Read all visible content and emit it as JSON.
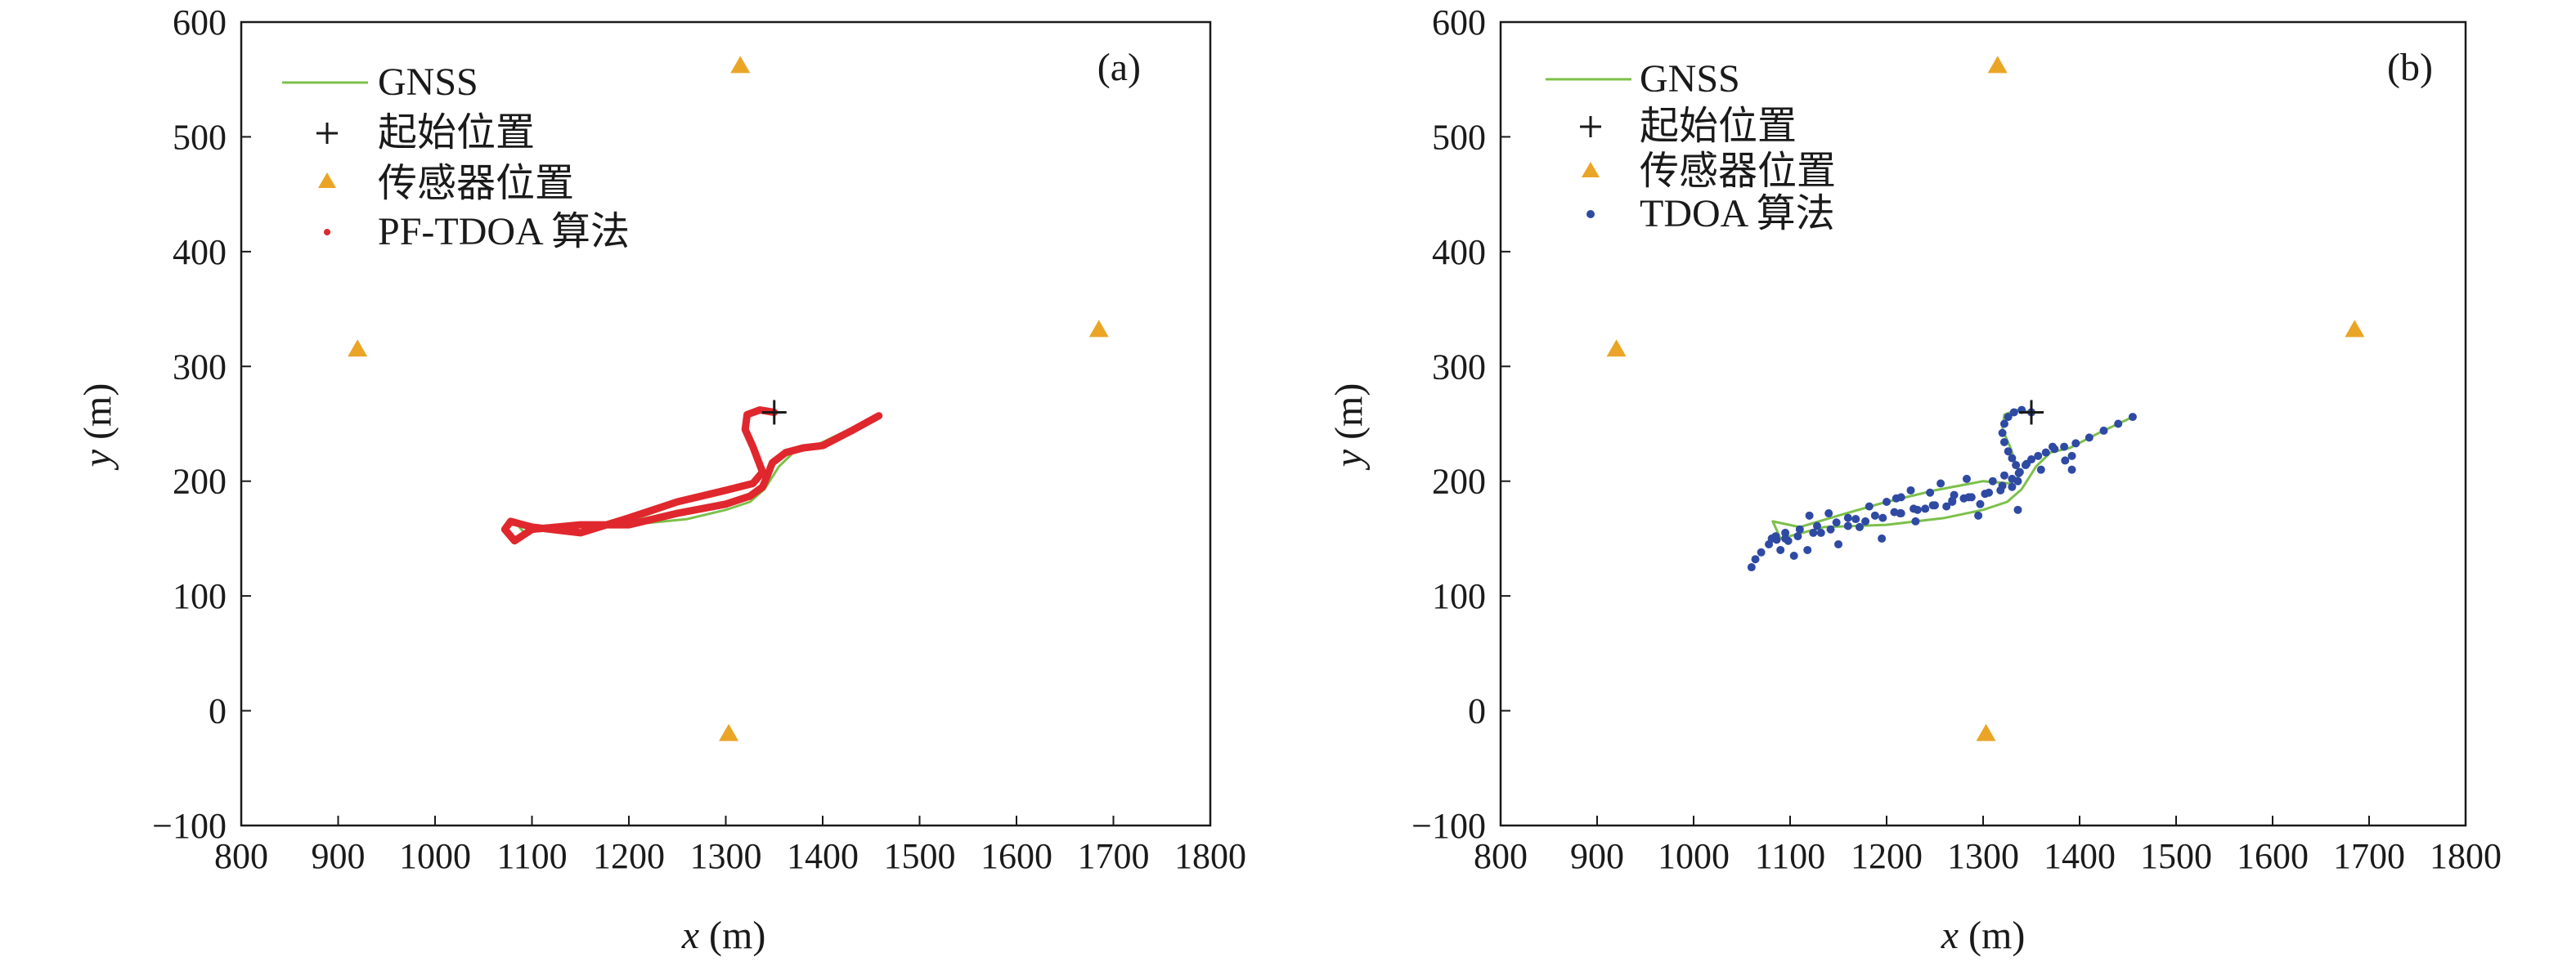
{
  "chart_data": [
    {
      "type": "line",
      "panel_label": "(a)",
      "xlabel_var": "x",
      "xlabel_unit": "(m)",
      "ylabel_var": "y",
      "ylabel_unit": "(m)",
      "xlim": [
        800,
        1800
      ],
      "ylim": [
        -100,
        600
      ],
      "x_ticks": [
        "800",
        "900",
        "1000",
        "1100",
        "1200",
        "1300",
        "1400",
        "1500",
        "1600",
        "1700",
        "1800"
      ],
      "y_ticks": [
        "600",
        "500",
        "400",
        "300",
        "200",
        "100",
        "0",
        "−100"
      ],
      "grid": false,
      "legend_position": "top-left",
      "legend": [
        "GNSS",
        "起始位置",
        "传感器位置",
        "PF-TDOA 算法"
      ],
      "colors": {
        "gnss": "#7cc04a",
        "start": "#1a1a1a",
        "sensor": "#eaa526",
        "estimate": "#e0272d"
      },
      "start_point": [
        1350,
        260
      ],
      "sensors": [
        [
          920,
          315
        ],
        [
          1315,
          562
        ],
        [
          1303,
          -20
        ],
        [
          1685,
          332
        ]
      ],
      "series": [
        {
          "name": "GNSS",
          "kind": "line",
          "x": [
            1350,
            1335,
            1322,
            1320,
            1328,
            1338,
            1328,
            1300,
            1250,
            1200,
            1150,
            1100,
            1085,
            1092,
            1135,
            1200,
            1260,
            1300,
            1325,
            1340,
            1355,
            1370,
            1390,
            1420,
            1455
          ],
          "y": [
            260,
            262,
            258,
            245,
            230,
            205,
            196,
            190,
            180,
            165,
            157,
            160,
            162,
            155,
            160,
            162,
            167,
            175,
            182,
            193,
            213,
            225,
            230,
            242,
            256
          ]
        },
        {
          "name": "PF-TDOA 算法",
          "kind": "line",
          "x": [
            1350,
            1335,
            1322,
            1320,
            1328,
            1338,
            1328,
            1300,
            1250,
            1200,
            1150,
            1100,
            1078,
            1072,
            1082,
            1100,
            1150,
            1200,
            1250,
            1300,
            1325,
            1338,
            1342,
            1348,
            1362,
            1380,
            1400,
            1430,
            1458
          ],
          "y": [
            260,
            262,
            258,
            245,
            230,
            208,
            198,
            192,
            182,
            168,
            155,
            160,
            165,
            158,
            148,
            158,
            162,
            162,
            172,
            180,
            187,
            195,
            203,
            216,
            225,
            229,
            231,
            244,
            257
          ]
        }
      ]
    },
    {
      "type": "scatter",
      "panel_label": "(b)",
      "xlabel_var": "x",
      "xlabel_unit": "(m)",
      "ylabel_var": "y",
      "ylabel_unit": "(m)",
      "xlim": [
        800,
        1800
      ],
      "ylim": [
        -100,
        600
      ],
      "x_ticks": [
        "800",
        "900",
        "1000",
        "1100",
        "1200",
        "1300",
        "1400",
        "1500",
        "1600",
        "1700",
        "1800"
      ],
      "y_ticks": [
        "600",
        "500",
        "400",
        "300",
        "200",
        "100",
        "0",
        "−100"
      ],
      "grid": false,
      "legend_position": "top-left",
      "legend": [
        "GNSS",
        "起始位置",
        "传感器位置",
        "TDOA 算法"
      ],
      "colors": {
        "gnss": "#7cc04a",
        "start": "#1a1a1a",
        "sensor": "#eaa526",
        "estimate": "#2f4aa3"
      },
      "start_point": [
        1350,
        260
      ],
      "sensors": [
        [
          920,
          315
        ],
        [
          1315,
          562
        ],
        [
          1303,
          -20
        ],
        [
          1685,
          332
        ]
      ],
      "series": [
        {
          "name": "GNSS",
          "kind": "line",
          "x": [
            1350,
            1335,
            1322,
            1320,
            1328,
            1338,
            1328,
            1300,
            1250,
            1200,
            1150,
            1110,
            1082,
            1090,
            1135,
            1200,
            1260,
            1300,
            1325,
            1340,
            1355,
            1370,
            1390,
            1420,
            1455
          ],
          "y": [
            260,
            262,
            258,
            245,
            230,
            205,
            198,
            200,
            192,
            182,
            170,
            160,
            165,
            150,
            160,
            162,
            168,
            175,
            182,
            193,
            213,
            225,
            229,
            242,
            256
          ]
        },
        {
          "name": "TDOA 算法",
          "kind": "scatter",
          "x": [
            1350,
            1340,
            1332,
            1326,
            1322,
            1320,
            1322,
            1326,
            1330,
            1334,
            1337,
            1336,
            1330,
            1318,
            1302,
            1285,
            1268,
            1250,
            1232,
            1214,
            1196,
            1178,
            1160,
            1142,
            1124,
            1108,
            1095,
            1086,
            1081,
            1085,
            1095,
            1110,
            1128,
            1148,
            1168,
            1188,
            1208,
            1228,
            1248,
            1268,
            1288,
            1306,
            1320,
            1330,
            1338,
            1344,
            1350,
            1357,
            1365,
            1374,
            1384,
            1396,
            1410,
            1425,
            1440,
            1455,
            1060,
            1064,
            1070,
            1078,
            1090,
            1098,
            1104,
            1118,
            1132,
            1150,
            1172,
            1195,
            1215,
            1230,
            1245,
            1262,
            1280,
            1295,
            1310,
            1322,
            1336,
            1345,
            1360,
            1372,
            1385,
            1392,
            1392,
            1210,
            1225,
            1240,
            1256,
            1270,
            1283,
            1297,
            1120,
            1140,
            1160,
            1182,
            1200,
            1215
          ],
          "y": [
            260,
            262,
            260,
            256,
            250,
            242,
            234,
            226,
            220,
            214,
            207,
            200,
            195,
            192,
            189,
            186,
            183,
            179,
            175,
            172,
            168,
            165,
            161,
            158,
            155,
            152,
            150,
            149,
            150,
            152,
            155,
            158,
            161,
            164,
            167,
            170,
            173,
            176,
            179,
            182,
            186,
            190,
            196,
            202,
            208,
            214,
            219,
            222,
            225,
            228,
            230,
            233,
            238,
            244,
            250,
            256,
            125,
            132,
            138,
            145,
            140,
            148,
            135,
            140,
            155,
            145,
            160,
            150,
            172,
            165,
            190,
            178,
            185,
            170,
            200,
            205,
            175,
            215,
            210,
            230,
            218,
            210,
            222,
            185,
            192,
            176,
            198,
            188,
            202,
            180,
            170,
            172,
            168,
            178,
            182,
            186
          ]
        }
      ]
    }
  ]
}
